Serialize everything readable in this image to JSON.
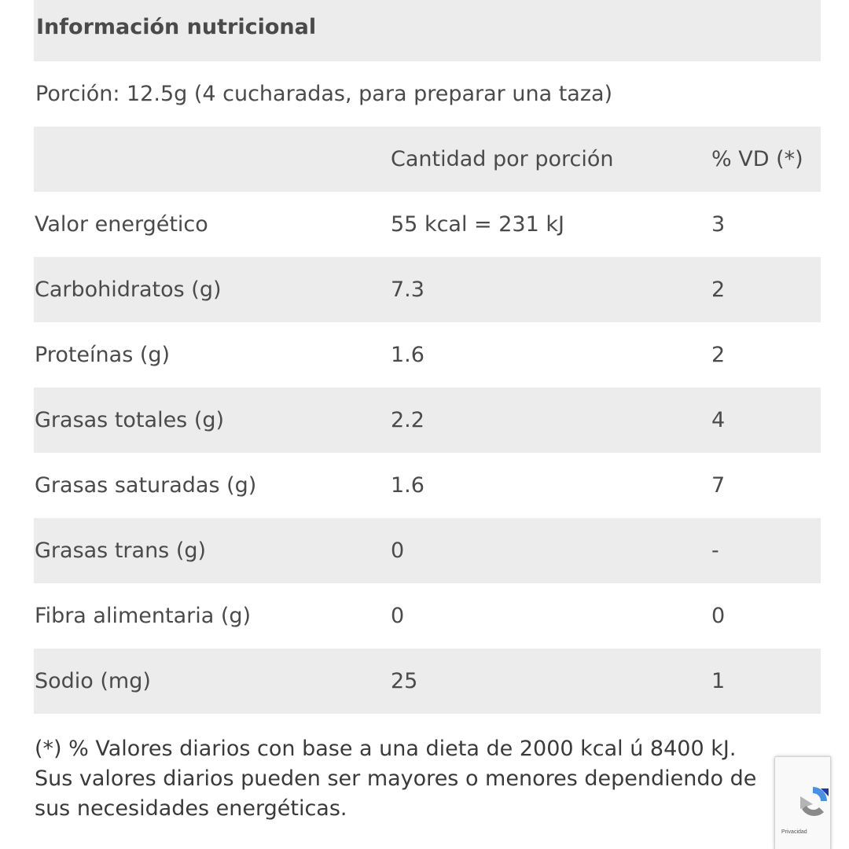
{
  "title": "Información nutricional",
  "portion": "Porción: 12.5g (4 cucharadas, para preparar una taza)",
  "columns": [
    "",
    "Cantidad por porción",
    "% VD (*)"
  ],
  "rows": [
    {
      "nutrient": "Valor energético",
      "amount": "55 kcal = 231 kJ",
      "dv": "3"
    },
    {
      "nutrient": "Carbohidratos (g)",
      "amount": "7.3",
      "dv": "2"
    },
    {
      "nutrient": "Proteínas (g)",
      "amount": "1.6",
      "dv": "2"
    },
    {
      "nutrient": "Grasas totales (g)",
      "amount": "2.2",
      "dv": "4"
    },
    {
      "nutrient": "Grasas saturadas (g)",
      "amount": "1.6",
      "dv": "7"
    },
    {
      "nutrient": "Grasas trans (g)",
      "amount": "0",
      "dv": "-"
    },
    {
      "nutrient": "Fibra alimentaria (g)",
      "amount": "0",
      "dv": "0"
    },
    {
      "nutrient": "Sodio (mg)",
      "amount": "25",
      "dv": "1"
    }
  ],
  "footnote": {
    "line1": "(*) % Valores diarios con base a una dieta de 2000 kcal ú 8400 kJ.",
    "line2": "Sus valores diarios pueden ser mayores o menores dependiendo de",
    "line3": "sus necesidades energéticas."
  },
  "recaptcha": {
    "privacy_label": "Privacidad",
    "icon": "recaptcha-icon",
    "colors": {
      "blue": "#4a90e2",
      "grey": "#b4b4b4",
      "dark_blue": "#1c3aa9"
    }
  }
}
